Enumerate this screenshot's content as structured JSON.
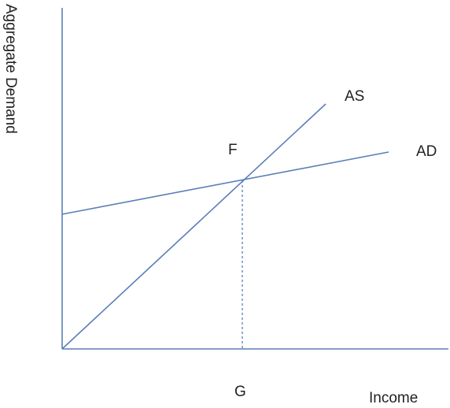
{
  "axes": {
    "y_label": "Aggregate Demand",
    "x_label": "Income"
  },
  "curves": {
    "as_label": "AS",
    "ad_label": "AD"
  },
  "equilibrium": {
    "point_label": "F",
    "income_label": "G"
  },
  "colors": {
    "line": "#5b7fb8",
    "text": "#222222",
    "background": "#ffffff"
  }
}
